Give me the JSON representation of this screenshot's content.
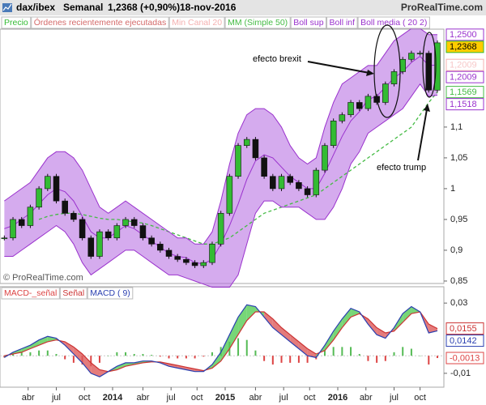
{
  "header": {
    "symbol": "dax/ibex",
    "period": "Semanal",
    "last": "1,2368 (+0,90%)",
    "date": "18-nov-2016",
    "site": "ProRealTime.com"
  },
  "chart_data": [
    {
      "type": "candlestick",
      "watermark": "© ProRealTime.com",
      "annotations": [
        {
          "text": "efecto brexit"
        },
        {
          "text": "efecto trump"
        }
      ],
      "x": [
        0,
        4,
        8,
        12,
        16,
        20,
        24,
        28,
        32,
        36,
        40,
        44,
        48,
        52,
        56,
        60,
        64,
        68,
        72,
        76,
        80,
        84,
        88,
        92,
        96,
        100,
        104,
        108,
        112,
        116,
        120,
        124,
        128,
        132,
        136,
        140,
        144,
        148,
        152,
        156,
        160,
        164,
        168,
        172,
        176,
        180,
        184,
        188,
        192,
        196,
        200
      ],
      "xlim": [
        -2,
        203
      ],
      "ylim": [
        0.846,
        1.259
      ],
      "yticks": [
        {
          "value": 1.1,
          "label": "1,1"
        },
        {
          "value": 1.05,
          "label": "1,05"
        },
        {
          "value": 1,
          "label": "1"
        },
        {
          "value": 0.95,
          "label": "0,95"
        },
        {
          "value": 0.9,
          "label": "0,9"
        },
        {
          "value": 0.85,
          "label": "0,85"
        }
      ],
      "band_fill": "#b266e0",
      "series": [
        {
          "name": "Precio",
          "style": "candle",
          "color": "#33bb33",
          "last_label": "1,2368",
          "label_fill": "#ffcc00",
          "values": [
            0.92,
            0.95,
            0.94,
            0.97,
            1.0,
            1.02,
            0.98,
            0.96,
            0.95,
            0.92,
            0.89,
            0.93,
            0.92,
            0.94,
            0.95,
            0.94,
            0.92,
            0.91,
            0.9,
            0.89,
            0.885,
            0.88,
            0.875,
            0.88,
            0.91,
            0.96,
            1.02,
            1.07,
            1.08,
            1.05,
            1.02,
            1.0,
            1.02,
            1.01,
            1.0,
            0.99,
            1.03,
            1.07,
            1.11,
            1.12,
            1.14,
            1.13,
            1.15,
            1.14,
            1.17,
            1.19,
            1.21,
            1.22,
            1.22,
            1.16,
            1.2368
          ]
        },
        {
          "name": "Órdenes recientemente ejecutadas",
          "style": "legend",
          "color": "#d46a6a"
        },
        {
          "name": "Min Canal 20",
          "style": "legend",
          "color": "#f4b0b0",
          "last_value": 1.2009,
          "last_label": "1,2009"
        },
        {
          "name": "MM (Simple 50)",
          "style": "dashed",
          "color": "#44bb44",
          "last_label": "1,1569",
          "values": [
            null,
            null,
            null,
            null,
            0.95,
            0.955,
            0.958,
            0.96,
            0.96,
            0.958,
            0.955,
            0.952,
            0.95,
            0.95,
            0.948,
            0.946,
            0.944,
            0.94,
            0.935,
            0.93,
            0.925,
            0.92,
            0.915,
            0.91,
            0.91,
            0.915,
            0.92,
            0.93,
            0.94,
            0.95,
            0.96,
            0.965,
            0.97,
            0.975,
            0.98,
            0.985,
            0.99,
            1.0,
            1.01,
            1.02,
            1.03,
            1.04,
            1.05,
            1.06,
            1.07,
            1.08,
            1.09,
            1.1,
            1.12,
            1.14,
            1.1569
          ]
        },
        {
          "name": "Boll sup",
          "style": "line",
          "color": "#9a32cd",
          "last_label": "1,2500",
          "values": [
            0.98,
            0.99,
            1.0,
            1.01,
            1.03,
            1.05,
            1.06,
            1.06,
            1.05,
            1.03,
            1.0,
            0.97,
            0.96,
            0.97,
            0.98,
            0.97,
            0.96,
            0.95,
            0.94,
            0.93,
            0.92,
            0.92,
            0.91,
            0.91,
            0.93,
            0.98,
            1.04,
            1.09,
            1.12,
            1.13,
            1.13,
            1.12,
            1.1,
            1.07,
            1.05,
            1.04,
            1.05,
            1.1,
            1.14,
            1.17,
            1.18,
            1.19,
            1.2,
            1.2,
            1.22,
            1.24,
            1.25,
            1.26,
            1.26,
            1.25,
            1.25
          ]
        },
        {
          "name": "Boll inf",
          "style": "line",
          "color": "#9a32cd",
          "last_label": "1,1518",
          "values": [
            0.89,
            0.89,
            0.9,
            0.91,
            0.92,
            0.93,
            0.94,
            0.93,
            0.91,
            0.88,
            0.86,
            0.87,
            0.88,
            0.89,
            0.9,
            0.9,
            0.89,
            0.88,
            0.87,
            0.86,
            0.86,
            0.855,
            0.85,
            0.845,
            0.84,
            0.84,
            0.84,
            0.86,
            0.91,
            0.96,
            0.98,
            0.98,
            0.97,
            0.97,
            0.97,
            0.96,
            0.95,
            0.95,
            0.97,
            1.0,
            1.04,
            1.06,
            1.09,
            1.1,
            1.11,
            1.12,
            1.13,
            1.15,
            1.17,
            1.15,
            1.1518
          ]
        },
        {
          "name": "Boll media ( 20 2)",
          "style": "line",
          "color": "#9a32cd",
          "last_label": "1,2009",
          "values": [
            0.935,
            0.94,
            0.95,
            0.96,
            0.975,
            0.99,
            1.0,
            0.995,
            0.98,
            0.955,
            0.93,
            0.92,
            0.92,
            0.93,
            0.94,
            0.935,
            0.925,
            0.915,
            0.905,
            0.895,
            0.89,
            0.888,
            0.88,
            0.878,
            0.885,
            0.91,
            0.94,
            0.975,
            1.015,
            1.045,
            1.055,
            1.05,
            1.035,
            1.02,
            1.01,
            1.0,
            1.0,
            1.025,
            1.055,
            1.085,
            1.11,
            1.125,
            1.145,
            1.15,
            1.165,
            1.18,
            1.19,
            1.205,
            1.215,
            1.2,
            1.2009
          ]
        }
      ]
    },
    {
      "type": "macd",
      "x": [
        0,
        4,
        8,
        12,
        16,
        20,
        24,
        28,
        32,
        36,
        40,
        44,
        48,
        52,
        56,
        60,
        64,
        68,
        72,
        76,
        80,
        84,
        88,
        92,
        96,
        100,
        104,
        108,
        112,
        116,
        120,
        124,
        128,
        132,
        136,
        140,
        144,
        148,
        152,
        156,
        160,
        164,
        168,
        172,
        176,
        180,
        184,
        188,
        192,
        196,
        200
      ],
      "xlim": [
        -2,
        203
      ],
      "xticks": [
        {
          "value": 11,
          "label": "abr"
        },
        {
          "value": 24,
          "label": "jul"
        },
        {
          "value": 37,
          "label": "oct"
        },
        {
          "value": 50,
          "label": "2014"
        },
        {
          "value": 64,
          "label": "abr"
        },
        {
          "value": 77,
          "label": "jul"
        },
        {
          "value": 89,
          "label": "oct"
        },
        {
          "value": 102,
          "label": "2015"
        },
        {
          "value": 116,
          "label": "abr"
        },
        {
          "value": 129,
          "label": "jul"
        },
        {
          "value": 141,
          "label": "oct"
        },
        {
          "value": 154,
          "label": "2016"
        },
        {
          "value": 167,
          "label": "abr"
        },
        {
          "value": 180,
          "label": "jul"
        },
        {
          "value": 192,
          "label": "oct"
        }
      ],
      "ylim": [
        -0.0179,
        0.0393
      ],
      "yticks": [
        {
          "value": 0.03,
          "label": "0,03"
        },
        {
          "value": -0.01,
          "label": "-0,01"
        }
      ],
      "fill_up": "#55cc55",
      "fill_down": "#dd5a5a",
      "series": [
        {
          "name": "MACD-_señal",
          "style": "histogram",
          "color": "#dd4444",
          "up_color": "#55bb55",
          "last_label": "-0,0013",
          "values": [
            -0.001,
            0.001,
            0.002,
            0.002,
            0.003,
            0.003,
            0.001,
            -0.002,
            -0.004,
            -0.005,
            -0.006,
            -0.004,
            0.0,
            0.002,
            0.002,
            0.001,
            0.001,
            0.0005,
            -0.0005,
            -0.0015,
            -0.0015,
            -0.0015,
            -0.0015,
            -0.0005,
            0.002,
            0.005,
            0.008,
            0.01,
            0.009,
            0.003,
            -0.003,
            -0.005,
            -0.004,
            -0.004,
            -0.004,
            -0.004,
            -0.002,
            0.003,
            0.005,
            0.005,
            0.005,
            0.001,
            -0.003,
            -0.004,
            -0.003,
            0.002,
            0.005,
            0.004,
            0.0,
            -0.005,
            -0.0013
          ]
        },
        {
          "name": "Señal",
          "style": "line",
          "color": "#cc3333",
          "last_label": "0,0155",
          "values": [
            0.0,
            0.001,
            0.002,
            0.004,
            0.006,
            0.008,
            0.009,
            0.008,
            0.005,
            0.001,
            -0.004,
            -0.008,
            -0.009,
            -0.008,
            -0.006,
            -0.005,
            -0.004,
            -0.0035,
            -0.0035,
            -0.0045,
            -0.0055,
            -0.0065,
            -0.0075,
            -0.0085,
            -0.007,
            -0.003,
            0.004,
            0.012,
            0.02,
            0.025,
            0.025,
            0.021,
            0.016,
            0.012,
            0.008,
            0.004,
            0.001,
            0.003,
            0.009,
            0.016,
            0.022,
            0.024,
            0.021,
            0.016,
            0.013,
            0.014,
            0.019,
            0.024,
            0.025,
            0.018,
            0.0155
          ]
        },
        {
          "name": "MACD ( 9)",
          "style": "line",
          "color": "#2a3fb0",
          "last_label": "0,0142",
          "values": [
            -0.001,
            0.002,
            0.004,
            0.006,
            0.009,
            0.011,
            0.01,
            0.006,
            0.001,
            -0.004,
            -0.01,
            -0.012,
            -0.009,
            -0.006,
            -0.004,
            -0.004,
            -0.003,
            -0.003,
            -0.004,
            -0.006,
            -0.007,
            -0.008,
            -0.009,
            -0.009,
            -0.005,
            0.002,
            0.012,
            0.022,
            0.029,
            0.028,
            0.022,
            0.016,
            0.012,
            0.008,
            0.004,
            0.0,
            -0.001,
            0.006,
            0.014,
            0.021,
            0.027,
            0.025,
            0.018,
            0.012,
            0.01,
            0.016,
            0.024,
            0.028,
            0.025,
            0.013,
            0.0142
          ]
        }
      ]
    }
  ]
}
